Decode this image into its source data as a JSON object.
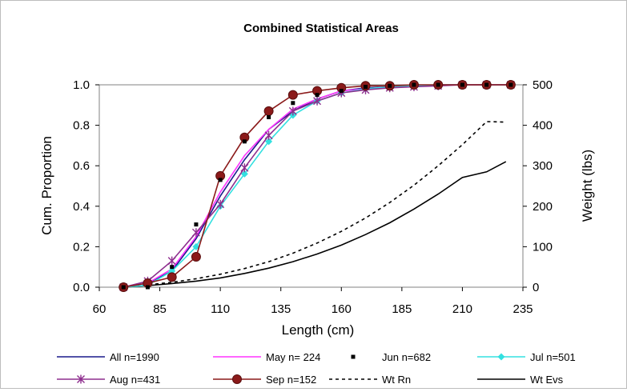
{
  "chart_data": {
    "type": "line",
    "title": "Combined Statistical Areas",
    "xlabel": "Length (cm)",
    "ylabel": "Cum. Proportion",
    "y2label": "Weight (lbs)",
    "xlim": [
      60,
      235
    ],
    "ylim": [
      0,
      1.0
    ],
    "y2lim": [
      0,
      500
    ],
    "xticks": [
      "60",
      "85",
      "110",
      "135",
      "160",
      "185",
      "210",
      "235"
    ],
    "yticks": [
      "0.0",
      "0.2",
      "0.4",
      "0.6",
      "0.8",
      "1.0"
    ],
    "y2ticks": [
      "0",
      "100",
      "200",
      "300",
      "400",
      "500"
    ],
    "grid": false,
    "legend_position": "bottom",
    "series": [
      {
        "name": "All n=1990",
        "axis": "left",
        "color": "#1a1a8c",
        "marker": "none",
        "x": [
          70,
          80,
          90,
          100,
          110,
          120,
          130,
          140,
          150,
          160,
          170,
          180,
          190,
          200,
          210,
          220,
          230
        ],
        "y": [
          0.0,
          0.02,
          0.08,
          0.24,
          0.45,
          0.63,
          0.78,
          0.87,
          0.93,
          0.97,
          0.985,
          0.99,
          0.995,
          1.0,
          1.0,
          1.0,
          1.0
        ]
      },
      {
        "name": "May n= 224",
        "axis": "left",
        "color": "#ff33ff",
        "marker": "none",
        "x": [
          70,
          80,
          90,
          100,
          110,
          120,
          130,
          140,
          150,
          160,
          170,
          180,
          190,
          200,
          210,
          220,
          230
        ],
        "y": [
          0.0,
          0.02,
          0.09,
          0.25,
          0.47,
          0.65,
          0.78,
          0.88,
          0.93,
          0.97,
          0.98,
          0.99,
          0.995,
          1.0,
          1.0,
          1.0,
          1.0
        ]
      },
      {
        "name": "Jun n=682",
        "axis": "left",
        "color": "#000000",
        "marker": "square",
        "x": [
          70,
          80,
          90,
          100,
          110,
          120,
          130,
          140,
          150,
          160,
          170,
          180,
          190,
          200,
          210,
          220,
          230
        ],
        "y": [
          0.0,
          0.0,
          0.1,
          0.31,
          0.53,
          0.72,
          0.84,
          0.91,
          0.95,
          0.97,
          0.99,
          0.995,
          1.0,
          1.0,
          1.0,
          1.0,
          1.0
        ]
      },
      {
        "name": "Jul n=501",
        "axis": "left",
        "color": "#33e0e0",
        "marker": "diamond",
        "x": [
          70,
          80,
          90,
          100,
          110,
          120,
          130,
          140,
          150,
          160,
          170,
          180,
          190,
          200,
          210,
          220,
          230
        ],
        "y": [
          0.0,
          0.01,
          0.08,
          0.2,
          0.4,
          0.56,
          0.72,
          0.85,
          0.92,
          0.96,
          0.98,
          0.99,
          0.995,
          1.0,
          1.0,
          1.0,
          1.0
        ]
      },
      {
        "name": "Aug n=431",
        "axis": "left",
        "color": "#8e2e8e",
        "marker": "star",
        "x": [
          70,
          80,
          90,
          100,
          110,
          120,
          130,
          140,
          150,
          160,
          170,
          180,
          190,
          200,
          210,
          220,
          230
        ],
        "y": [
          0.0,
          0.03,
          0.13,
          0.27,
          0.41,
          0.59,
          0.75,
          0.87,
          0.92,
          0.96,
          0.975,
          0.985,
          0.99,
          0.995,
          1.0,
          1.0,
          1.0
        ]
      },
      {
        "name": "Sep n=152",
        "axis": "left",
        "color": "#8b1a1a",
        "marker": "circle",
        "x": [
          70,
          80,
          90,
          100,
          110,
          120,
          130,
          140,
          150,
          160,
          170,
          180,
          190,
          200,
          210,
          220,
          230
        ],
        "y": [
          0.0,
          0.02,
          0.05,
          0.15,
          0.55,
          0.74,
          0.87,
          0.95,
          0.97,
          0.985,
          0.995,
          0.995,
          1.0,
          1.0,
          1.0,
          1.0,
          1.0
        ]
      },
      {
        "name": "Wt Rn",
        "axis": "right",
        "color": "#000000",
        "marker": "none",
        "dash": true,
        "x": [
          70,
          80,
          90,
          100,
          110,
          120,
          130,
          140,
          150,
          160,
          170,
          180,
          190,
          200,
          210,
          220,
          228
        ],
        "y": [
          0,
          6,
          12,
          21,
          32,
          46,
          63,
          84,
          109,
          138,
          171,
          209,
          252,
          300,
          352,
          409,
          408
        ]
      },
      {
        "name": "Wt Evs",
        "axis": "right",
        "color": "#000000",
        "marker": "none",
        "dash": false,
        "x": [
          70,
          80,
          90,
          100,
          110,
          120,
          130,
          140,
          150,
          160,
          170,
          180,
          190,
          200,
          210,
          220,
          228
        ],
        "y": [
          0,
          4,
          9,
          15,
          23,
          34,
          47,
          63,
          82,
          104,
          130,
          159,
          193,
          230,
          271,
          285,
          310
        ]
      }
    ]
  }
}
